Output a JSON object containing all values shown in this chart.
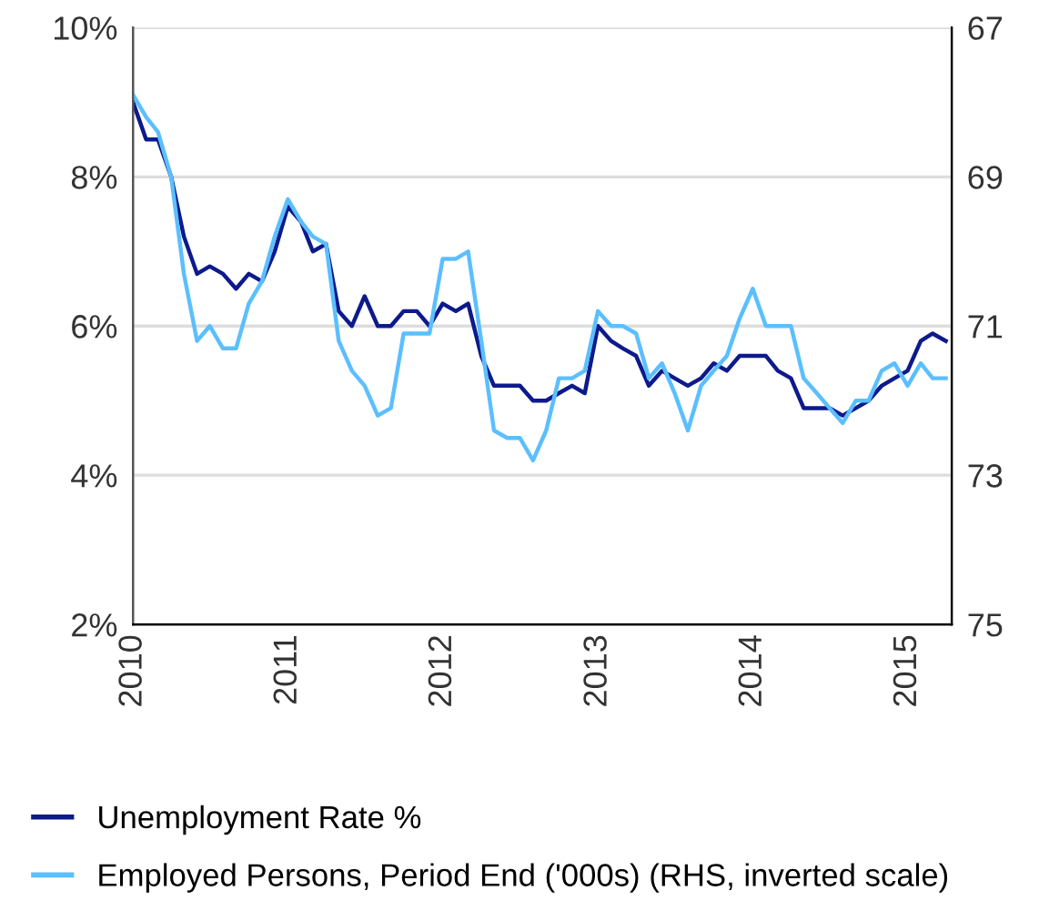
{
  "chart_data": {
    "type": "line",
    "x": [
      "2010-01",
      "2010-02",
      "2010-03",
      "2010-04",
      "2010-05",
      "2010-06",
      "2010-07",
      "2010-08",
      "2010-09",
      "2010-10",
      "2010-11",
      "2010-12",
      "2011-01",
      "2011-02",
      "2011-03",
      "2011-04",
      "2011-05",
      "2011-06",
      "2011-07",
      "2011-08",
      "2011-09",
      "2011-10",
      "2011-11",
      "2011-12",
      "2012-01",
      "2012-02",
      "2012-03",
      "2012-04",
      "2012-05",
      "2012-06",
      "2012-07",
      "2012-08",
      "2012-09",
      "2012-10",
      "2012-11",
      "2012-12",
      "2013-01",
      "2013-02",
      "2013-03",
      "2013-04",
      "2013-05",
      "2013-06",
      "2013-07",
      "2013-08",
      "2013-09",
      "2013-10",
      "2013-11",
      "2013-12",
      "2014-01",
      "2014-02",
      "2014-03",
      "2014-04",
      "2014-05",
      "2014-06",
      "2014-07",
      "2014-08",
      "2014-09",
      "2014-10",
      "2014-11",
      "2014-12",
      "2015-01",
      "2015-02",
      "2015-03",
      "2015-04"
    ],
    "series": [
      {
        "name": "Unemployment Rate %",
        "color": "#0d1a8c",
        "values": [
          9.0,
          8.5,
          8.5,
          8.0,
          7.2,
          6.7,
          6.8,
          6.7,
          6.5,
          6.7,
          6.6,
          7.0,
          7.6,
          7.4,
          7.0,
          7.1,
          6.2,
          6.0,
          6.4,
          6.0,
          6.0,
          6.2,
          6.2,
          6.0,
          6.3,
          6.2,
          6.3,
          5.6,
          5.2,
          5.2,
          5.2,
          5.0,
          5.0,
          5.1,
          5.2,
          5.1,
          6.0,
          5.8,
          5.7,
          5.6,
          5.2,
          5.4,
          5.3,
          5.2,
          5.3,
          5.5,
          5.4,
          5.6,
          5.6,
          5.6,
          5.4,
          5.3,
          4.9,
          4.9,
          4.9,
          4.8,
          4.9,
          5.0,
          5.2,
          5.3,
          5.4,
          5.8,
          5.9,
          5.8
        ]
      },
      {
        "name": "Employed Persons, Period End ('000s) (RHS, inverted scale)",
        "color": "#5bbfff",
        "axis": "y2",
        "values": [
          67.9,
          68.2,
          68.4,
          69.0,
          70.3,
          71.2,
          71.0,
          71.3,
          71.3,
          70.7,
          70.4,
          69.8,
          69.3,
          69.6,
          69.8,
          69.9,
          71.2,
          71.6,
          71.8,
          72.2,
          72.1,
          71.1,
          71.1,
          71.1,
          70.1,
          70.1,
          70.0,
          71.2,
          72.4,
          72.5,
          72.5,
          72.8,
          72.4,
          71.7,
          71.7,
          71.6,
          70.8,
          71.0,
          71.0,
          71.1,
          71.7,
          71.5,
          71.9,
          72.4,
          71.8,
          71.6,
          71.4,
          70.9,
          70.5,
          71.0,
          71.0,
          71.0,
          71.7,
          71.9,
          72.1,
          72.3,
          72.0,
          72.0,
          71.6,
          71.5,
          71.8,
          71.5,
          71.7,
          71.7
        ]
      }
    ],
    "xlim": [
      "2010-01",
      "2015-04-15"
    ],
    "xticks": [
      {
        "value": "2010-01-01",
        "label": "2010"
      },
      {
        "value": "2011-01-01",
        "label": "2011"
      },
      {
        "value": "2012-01-01",
        "label": "2012"
      },
      {
        "value": "2013-01-01",
        "label": "2013"
      },
      {
        "value": "2014-01-01",
        "label": "2014"
      },
      {
        "value": "2015-01-01",
        "label": "2015"
      }
    ],
    "ylim": [
      2,
      10
    ],
    "yticks": [
      {
        "value": 2,
        "label": "2%"
      },
      {
        "value": 4,
        "label": "4%"
      },
      {
        "value": 6,
        "label": "6%"
      },
      {
        "value": 8,
        "label": "8%"
      },
      {
        "value": 10,
        "label": "10%"
      }
    ],
    "y2lim": [
      75,
      67
    ],
    "y2ticks": [
      67,
      69,
      71,
      73,
      75
    ],
    "grid": "y",
    "legend": "bottom",
    "line_style": "solid",
    "marker": "none"
  }
}
